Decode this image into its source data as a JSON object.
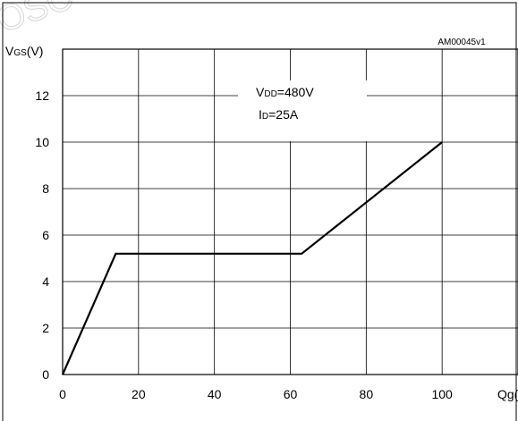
{
  "chart_data": {
    "type": "line",
    "figure_code": "AM00045v1",
    "watermark": "OSC",
    "ylabel": {
      "main": "V",
      "sub": "GS",
      "unit": "(V)"
    },
    "xlabel": "Qg(",
    "xlim": [
      0,
      120
    ],
    "ylim": [
      0,
      14
    ],
    "x_ticks": [
      "0",
      "20",
      "40",
      "60",
      "80",
      "100"
    ],
    "y_ticks": [
      "0",
      "2",
      "4",
      "6",
      "8",
      "10",
      "12"
    ],
    "grid": true,
    "annotation": {
      "line1": {
        "main": "V",
        "sub": "DD",
        "rest": "=480V"
      },
      "line2": {
        "main": "I",
        "sub": "D",
        "rest": "=25A"
      }
    },
    "series": [
      {
        "color": "#000000",
        "x": [
          0,
          14,
          63,
          100
        ],
        "y": [
          0,
          5.2,
          5.2,
          10
        ]
      }
    ]
  }
}
